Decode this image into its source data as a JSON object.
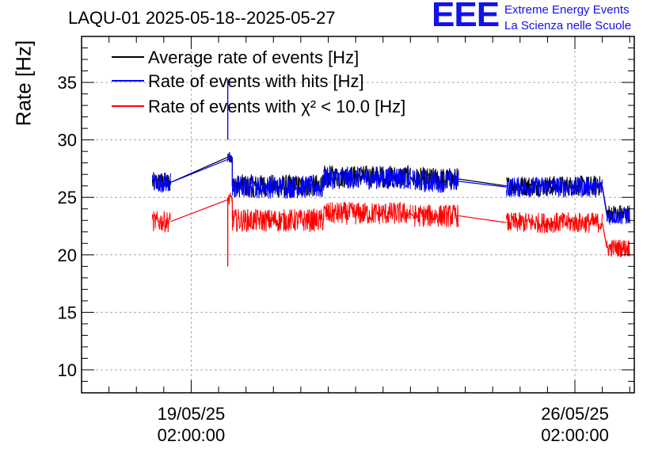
{
  "header": {
    "title": "LAQU-01 2025-05-18--2025-05-27",
    "logo": "EEE",
    "logo_line1": "Extreme Energy Events",
    "logo_line2": "La Scienza nelle Scuole"
  },
  "colors": {
    "avg": "#000000",
    "hits": "#0000ff",
    "chi2": "#ff0000",
    "logo": "#1111ee"
  },
  "chart_data": {
    "type": "line",
    "ylabel": "Rate [Hz]",
    "ylim": [
      8,
      39
    ],
    "xlim": [
      "2025-05-17T02:00",
      "2025-05-27T04:00"
    ],
    "grid": true,
    "legend_position": "top-left",
    "y_ticks": [
      10,
      15,
      20,
      25,
      30,
      35
    ],
    "x_ticks": [
      {
        "date": "2025-05-19T02:00",
        "label_line1": "19/05/25",
        "label_line2": "02:00:00"
      },
      {
        "date": "2025-05-26T02:00",
        "label_line1": "26/05/25",
        "label_line2": "02:00:00"
      }
    ],
    "series": [
      {
        "name": "Average rate of events [Hz]",
        "key": "avg",
        "segments": [
          {
            "start": "2025-05-18T09:00",
            "end": "2025-05-18T17:00",
            "mean": 26.3,
            "noise": 0.9
          },
          {
            "start": "2025-05-19T18:00",
            "end": "2025-05-19T20:00",
            "mean": 28.5,
            "noise": 0.5
          },
          {
            "start": "2025-05-19T20:00",
            "end": "2025-05-21T12:00",
            "mean": 26.0,
            "noise": 1.0
          },
          {
            "start": "2025-05-21T12:00",
            "end": "2025-05-23T02:00",
            "mean": 26.8,
            "noise": 1.0
          },
          {
            "start": "2025-05-23T03:00",
            "end": "2025-05-23T23:00",
            "mean": 26.6,
            "noise": 1.0
          },
          {
            "start": "2025-05-24T20:00",
            "end": "2025-05-26T14:00",
            "mean": 26.0,
            "noise": 0.9
          },
          {
            "start": "2025-05-26T16:00",
            "end": "2025-05-27T02:00",
            "mean": 23.6,
            "noise": 0.8
          }
        ]
      },
      {
        "name": "Rate of events with hits [Hz]",
        "key": "hits",
        "segments": [
          {
            "start": "2025-05-18T09:00",
            "end": "2025-05-18T17:00",
            "mean": 26.3,
            "noise": 0.9
          },
          {
            "start": "2025-05-19T18:00",
            "end": "2025-05-19T20:00",
            "mean": 28.3,
            "noise": 0.5
          },
          {
            "start": "2025-05-19T20:00",
            "end": "2025-05-21T12:00",
            "mean": 25.9,
            "noise": 1.0
          },
          {
            "start": "2025-05-21T12:00",
            "end": "2025-05-23T02:00",
            "mean": 26.7,
            "noise": 1.0
          },
          {
            "start": "2025-05-23T03:00",
            "end": "2025-05-23T23:00",
            "mean": 26.4,
            "noise": 1.0
          },
          {
            "start": "2025-05-24T20:00",
            "end": "2025-05-26T14:00",
            "mean": 25.9,
            "noise": 0.9
          },
          {
            "start": "2025-05-26T16:00",
            "end": "2025-05-27T02:00",
            "mean": 23.4,
            "noise": 0.8
          }
        ]
      },
      {
        "name": "Rate of events with χ² < 10.0 [Hz]",
        "key": "chi2",
        "segments": [
          {
            "start": "2025-05-18T09:00",
            "end": "2025-05-18T17:00",
            "mean": 22.9,
            "noise": 0.9
          },
          {
            "start": "2025-05-19T18:00",
            "end": "2025-05-19T20:00",
            "mean": 24.8,
            "noise": 0.6
          },
          {
            "start": "2025-05-19T20:00",
            "end": "2025-05-21T12:00",
            "mean": 23.0,
            "noise": 1.0
          },
          {
            "start": "2025-05-21T12:00",
            "end": "2025-05-23T02:00",
            "mean": 23.6,
            "noise": 1.0
          },
          {
            "start": "2025-05-23T03:00",
            "end": "2025-05-23T23:00",
            "mean": 23.4,
            "noise": 1.0
          },
          {
            "start": "2025-05-24T20:00",
            "end": "2025-05-26T14:00",
            "mean": 22.8,
            "noise": 0.9
          },
          {
            "start": "2025-05-26T16:00",
            "end": "2025-05-27T02:00",
            "mean": 20.6,
            "noise": 0.8
          }
        ]
      }
    ],
    "spike": {
      "date": "2025-05-19T18:00",
      "low": 19.0,
      "high": 35.3
    }
  }
}
